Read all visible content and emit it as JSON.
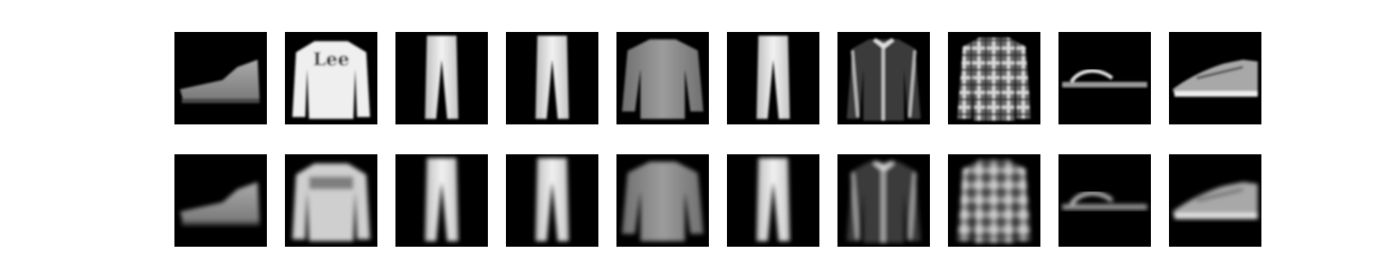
{
  "figure": {
    "background": "#ffffff",
    "tile_background": "#000000",
    "rows": [
      {
        "kind": "original",
        "items": [
          {
            "item": "ankle-boot"
          },
          {
            "item": "pullover",
            "logo_text": "Lee"
          },
          {
            "item": "trouser"
          },
          {
            "item": "trouser"
          },
          {
            "item": "shirt"
          },
          {
            "item": "trouser"
          },
          {
            "item": "coat"
          },
          {
            "item": "shirt",
            "pattern": "plaid"
          },
          {
            "item": "sandal"
          },
          {
            "item": "sneaker"
          }
        ]
      },
      {
        "kind": "reconstruction",
        "items": [
          {
            "item": "ankle-boot"
          },
          {
            "item": "pullover"
          },
          {
            "item": "trouser"
          },
          {
            "item": "trouser"
          },
          {
            "item": "shirt"
          },
          {
            "item": "trouser"
          },
          {
            "item": "coat"
          },
          {
            "item": "shirt",
            "pattern": "plaid"
          },
          {
            "item": "sandal"
          },
          {
            "item": "sneaker"
          }
        ]
      }
    ]
  }
}
